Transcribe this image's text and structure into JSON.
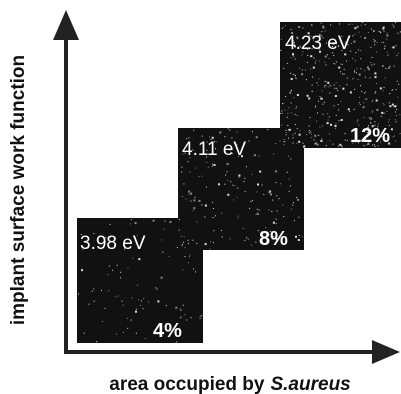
{
  "y_axis_label": "implant surface work function",
  "x_axis_label": {
    "text": "area occupied by",
    "species": "S.aureus"
  },
  "panels": [
    {
      "work_function": "3.98 eV",
      "area": "4%"
    },
    {
      "work_function": "4.11 eV",
      "area": "8%"
    },
    {
      "work_function": "4.23 eV",
      "area": "12%"
    }
  ]
}
